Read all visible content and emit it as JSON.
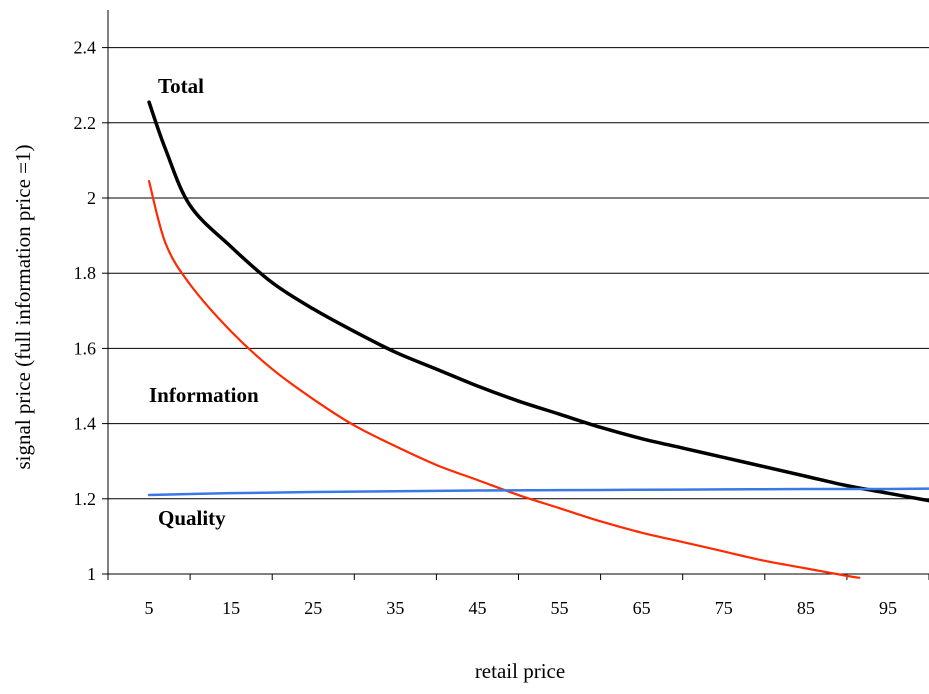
{
  "chart_data": {
    "type": "line",
    "title": "",
    "xlabel": "retail price",
    "ylabel": "signal price  (full information price =1)",
    "xlim": [
      0,
      100
    ],
    "ylim": [
      1,
      2.5
    ],
    "x_ticks": [
      5,
      15,
      25,
      35,
      45,
      55,
      65,
      75,
      85,
      95
    ],
    "y_ticks": [
      1,
      1.2,
      1.4,
      1.6,
      1.8,
      2,
      2.2,
      2.4
    ],
    "y_tick_labels": [
      "1",
      "1.2",
      "1.4",
      "1.6",
      "1.8",
      "2",
      "2.2",
      "2.4"
    ],
    "grid": "horizontal",
    "legend": "none",
    "series": [
      {
        "name": "Total",
        "color": "#000000",
        "x": [
          5,
          7,
          10,
          15,
          20,
          25,
          30,
          35,
          40,
          45,
          50,
          55,
          60,
          65,
          70,
          75,
          80,
          85,
          90,
          95,
          100
        ],
        "values": [
          2.255,
          2.13,
          1.98,
          1.87,
          1.775,
          1.705,
          1.645,
          1.59,
          1.545,
          1.5,
          1.46,
          1.425,
          1.39,
          1.36,
          1.335,
          1.31,
          1.285,
          1.26,
          1.235,
          1.215,
          1.195
        ]
      },
      {
        "name": "Information",
        "color": "#ff2a00",
        "x": [
          5,
          7,
          10,
          15,
          20,
          25,
          30,
          35,
          40,
          45,
          50,
          55,
          60,
          65,
          70,
          75,
          80,
          85,
          90,
          91.5
        ],
        "values": [
          2.045,
          1.88,
          1.77,
          1.645,
          1.545,
          1.465,
          1.395,
          1.34,
          1.29,
          1.25,
          1.21,
          1.175,
          1.14,
          1.11,
          1.085,
          1.06,
          1.035,
          1.015,
          0.995,
          0.99
        ]
      },
      {
        "name": "Quality",
        "color": "#3a78e6",
        "x": [
          5,
          15,
          25,
          35,
          45,
          55,
          65,
          75,
          85,
          95,
          100
        ],
        "values": [
          1.21,
          1.215,
          1.218,
          1.22,
          1.222,
          1.223,
          1.224,
          1.225,
          1.226,
          1.226,
          1.227
        ]
      }
    ],
    "annotations": [
      "Total",
      "Information",
      "Quality"
    ]
  }
}
